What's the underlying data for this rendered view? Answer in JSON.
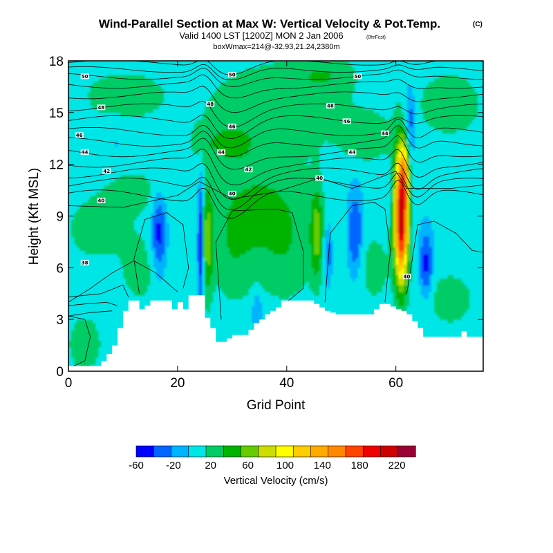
{
  "chart_data": {
    "type": "heatmap",
    "title": "Wind-Parallel Section at Max W: Vertical Velocity & Pot.Temp.",
    "title_mark": "(C)",
    "subtitle": "Valid 1400 LST [1200Z] MON 2 Jan 2006",
    "subtitle_note": "(0hrFcst)",
    "info_line": "boxWmax=214@-32.93,21.24,2380m",
    "xlabel": "Grid Point",
    "ylabel": "Height (Kft MSL)",
    "xlim": [
      0,
      76
    ],
    "ylim": [
      0,
      18
    ],
    "xticks": [
      0,
      20,
      40,
      60
    ],
    "xtick_labels": [
      "0",
      "20",
      "40",
      "60"
    ],
    "yticks": [
      0,
      3,
      6,
      9,
      12,
      15,
      18
    ],
    "ytick_labels": [
      "0",
      "3",
      "6",
      "9",
      "12",
      "15",
      "18"
    ],
    "colorbar": {
      "label": "Vertical Velocity (cm/s)",
      "levels": [
        -60,
        -40,
        -20,
        0,
        20,
        40,
        60,
        80,
        100,
        120,
        140,
        160,
        180,
        200,
        220,
        240
      ],
      "tick_labels": [
        "-60",
        "-20",
        "20",
        "60",
        "100",
        "140",
        "180",
        "220"
      ],
      "tick_values": [
        -60,
        -20,
        20,
        60,
        100,
        140,
        180,
        220
      ],
      "colors": [
        "#0000ff",
        "#0066ff",
        "#00b3ff",
        "#00e6e6",
        "#00cc66",
        "#00b300",
        "#66cc00",
        "#ccdd00",
        "#ffff00",
        "#ffcc00",
        "#ffaa00",
        "#ff8800",
        "#ff4400",
        "#ee0000",
        "#cc0000",
        "#990033"
      ]
    },
    "max_w": 214,
    "max_w_grid_point": 61,
    "terrain_kft": [
      [
        0,
        0.3
      ],
      [
        5,
        0.3
      ],
      [
        6,
        0.6
      ],
      [
        7,
        1.0
      ],
      [
        8,
        1.5
      ],
      [
        9,
        2.5
      ],
      [
        10,
        3.5
      ],
      [
        11,
        4.1
      ],
      [
        12,
        4.1
      ],
      [
        13,
        3.6
      ],
      [
        14,
        3.8
      ],
      [
        15,
        4.1
      ],
      [
        18,
        4.1
      ],
      [
        19,
        3.6
      ],
      [
        20,
        4.0
      ],
      [
        21,
        3.6
      ],
      [
        22,
        4.4
      ],
      [
        24,
        4.4
      ],
      [
        25,
        3.1
      ],
      [
        26,
        2.5
      ],
      [
        27,
        1.7
      ],
      [
        28,
        1.7
      ],
      [
        30,
        2.1
      ],
      [
        32,
        2.1
      ],
      [
        33,
        2.4
      ],
      [
        34,
        2.8
      ],
      [
        35,
        3.0
      ],
      [
        36,
        3.3
      ],
      [
        37,
        3.5
      ],
      [
        38,
        3.7
      ],
      [
        39,
        4.1
      ],
      [
        44,
        4.1
      ],
      [
        45,
        3.9
      ],
      [
        46,
        3.7
      ],
      [
        47,
        3.5
      ],
      [
        49,
        3.3
      ],
      [
        55,
        3.3
      ],
      [
        56,
        3.6
      ],
      [
        57,
        3.9
      ],
      [
        58,
        3.9
      ],
      [
        60,
        3.6
      ],
      [
        61,
        3.5
      ],
      [
        62,
        3.3
      ],
      [
        64,
        2.5
      ],
      [
        65,
        2.0
      ],
      [
        71,
        2.0
      ],
      [
        72,
        2.3
      ],
      [
        73,
        2.0
      ],
      [
        76,
        2.0
      ]
    ],
    "theta_labels": [
      {
        "x": 3,
        "y": 17.1,
        "text": "50"
      },
      {
        "x": 30,
        "y": 17.2,
        "text": "50"
      },
      {
        "x": 53,
        "y": 17.1,
        "text": "50"
      },
      {
        "x": 6,
        "y": 15.3,
        "text": "48"
      },
      {
        "x": 26,
        "y": 15.5,
        "text": "48"
      },
      {
        "x": 48,
        "y": 15.4,
        "text": "48"
      },
      {
        "x": 2,
        "y": 13.7,
        "text": "46"
      },
      {
        "x": 30,
        "y": 14.2,
        "text": "46"
      },
      {
        "x": 51,
        "y": 14.5,
        "text": "46"
      },
      {
        "x": 58,
        "y": 13.8,
        "text": "44"
      },
      {
        "x": 3,
        "y": 12.7,
        "text": "44"
      },
      {
        "x": 28,
        "y": 12.7,
        "text": "44"
      },
      {
        "x": 52,
        "y": 12.7,
        "text": "44"
      },
      {
        "x": 7,
        "y": 11.6,
        "text": "42"
      },
      {
        "x": 33,
        "y": 11.7,
        "text": "42"
      },
      {
        "x": 6,
        "y": 9.9,
        "text": "40"
      },
      {
        "x": 30,
        "y": 10.3,
        "text": "40"
      },
      {
        "x": 46,
        "y": 11.2,
        "text": "40"
      },
      {
        "x": 3,
        "y": 6.3,
        "text": "38"
      },
      {
        "x": 62,
        "y": 5.5,
        "text": "40"
      }
    ]
  }
}
